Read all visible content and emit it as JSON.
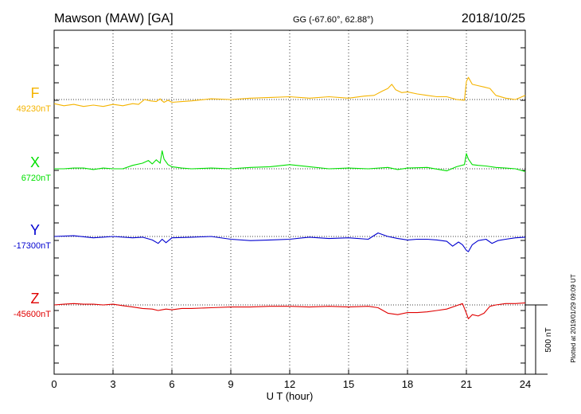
{
  "header": {
    "station": "Mawson (MAW)  [GA]",
    "coords": "GG (-67.60°,  62.88°)",
    "date": "2018/10/25"
  },
  "side_note": "Plotted at 2019/01/29 09:09 UT",
  "scale_bar_label": "500 nT",
  "chart_data": {
    "type": "line",
    "xlabel": "U T (hour)",
    "xlim": [
      0,
      24
    ],
    "xticks": [
      0,
      3,
      6,
      9,
      12,
      15,
      18,
      21,
      24
    ],
    "grid": true,
    "series": [
      {
        "name": "F",
        "baseline_label": "49230nT",
        "color": "#f5b400",
        "x": [
          0,
          0.5,
          1,
          1.5,
          2,
          2.5,
          3,
          3.5,
          4,
          4.3,
          4.6,
          4.9,
          5.2,
          5.4,
          5.5,
          5.6,
          5.8,
          6,
          6.5,
          7,
          8,
          9,
          10,
          11,
          12,
          13,
          14,
          15,
          15.8,
          16.3,
          16.7,
          17,
          17.2,
          17.4,
          17.7,
          18,
          18.5,
          19,
          19.5,
          20,
          20.5,
          20.9,
          21,
          21.1,
          21.3,
          21.6,
          21.9,
          22.2,
          22.5,
          23,
          23.5,
          24
        ],
        "values": [
          -80,
          -95,
          -85,
          -100,
          -90,
          -100,
          -85,
          -95,
          -80,
          -85,
          -50,
          -60,
          -65,
          -45,
          -60,
          -70,
          -55,
          -70,
          -65,
          -60,
          -45,
          -50,
          -40,
          -35,
          -30,
          -40,
          -30,
          -40,
          -25,
          -20,
          10,
          30,
          60,
          20,
          0,
          5,
          -10,
          -20,
          -30,
          -30,
          -50,
          -55,
          80,
          110,
          60,
          50,
          40,
          30,
          -20,
          -40,
          -50,
          -20
        ],
        "offset": 50
      },
      {
        "name": "X",
        "baseline_label": "6720nT",
        "color": "#00e000",
        "x": [
          0,
          0.5,
          1,
          1.5,
          2,
          2.5,
          3,
          3.5,
          4,
          4.5,
          4.8,
          5,
          5.2,
          5.4,
          5.5,
          5.6,
          5.8,
          6,
          6.5,
          7,
          8,
          9,
          10,
          11,
          12,
          13,
          14,
          15,
          16,
          17,
          17.5,
          18,
          19,
          20,
          20.5,
          20.9,
          21,
          21.1,
          21.3,
          21.6,
          22,
          22.5,
          23,
          23.5,
          24
        ],
        "values": [
          0,
          0,
          5,
          5,
          -5,
          5,
          0,
          0,
          25,
          40,
          60,
          35,
          65,
          40,
          130,
          70,
          30,
          15,
          5,
          0,
          5,
          0,
          10,
          15,
          30,
          15,
          0,
          5,
          0,
          10,
          -5,
          5,
          10,
          -15,
          15,
          30,
          110,
          70,
          30,
          25,
          20,
          10,
          5,
          0,
          -20
        ],
        "offset": 0
      },
      {
        "name": "Y",
        "baseline_label": "-17300nT",
        "color": "#0000d0",
        "x": [
          0,
          1,
          2,
          3,
          4,
          4.5,
          5,
          5.3,
          5.5,
          5.7,
          6,
          7,
          8,
          9,
          10,
          11,
          12,
          13,
          14,
          15,
          16,
          16.5,
          17,
          17.5,
          18,
          18.5,
          19,
          19.5,
          20,
          20.3,
          20.6,
          20.8,
          21,
          21.1,
          21.3,
          21.6,
          22,
          22.3,
          22.6,
          23,
          23.5,
          24
        ],
        "values": [
          0,
          5,
          -10,
          0,
          -10,
          -5,
          -25,
          -50,
          -20,
          -45,
          -10,
          -5,
          0,
          -20,
          -30,
          -25,
          -20,
          -5,
          -15,
          -10,
          -20,
          25,
          0,
          -15,
          -25,
          -20,
          -20,
          -25,
          -35,
          -70,
          -40,
          -60,
          -100,
          -110,
          -60,
          -30,
          -20,
          -50,
          -30,
          -20,
          -10,
          -5
        ],
        "offset": 0
      },
      {
        "name": "Z",
        "baseline_label": "-45600nT",
        "color": "#e00000",
        "x": [
          0,
          0.5,
          1,
          1.5,
          2,
          2.5,
          3,
          3.5,
          4,
          4.5,
          5,
          5.3,
          5.5,
          5.7,
          6,
          6.5,
          7,
          8,
          9,
          10,
          11,
          12,
          13,
          14,
          15,
          16,
          16.5,
          17,
          17.5,
          18,
          18.5,
          19,
          19.5,
          20,
          20.5,
          20.8,
          21,
          21.1,
          21.3,
          21.6,
          21.9,
          22.2,
          22.5,
          23,
          23.5,
          24
        ],
        "values": [
          0,
          5,
          10,
          5,
          5,
          0,
          5,
          -5,
          -15,
          -25,
          -30,
          -40,
          -35,
          -30,
          -35,
          -25,
          -25,
          -20,
          -15,
          -15,
          -10,
          -10,
          -15,
          -10,
          -15,
          -10,
          -20,
          -60,
          -70,
          -55,
          -55,
          -50,
          -40,
          -30,
          -5,
          10,
          -60,
          -100,
          -70,
          -80,
          -60,
          -10,
          0,
          10,
          10,
          15
        ],
        "offset": 0
      }
    ]
  }
}
